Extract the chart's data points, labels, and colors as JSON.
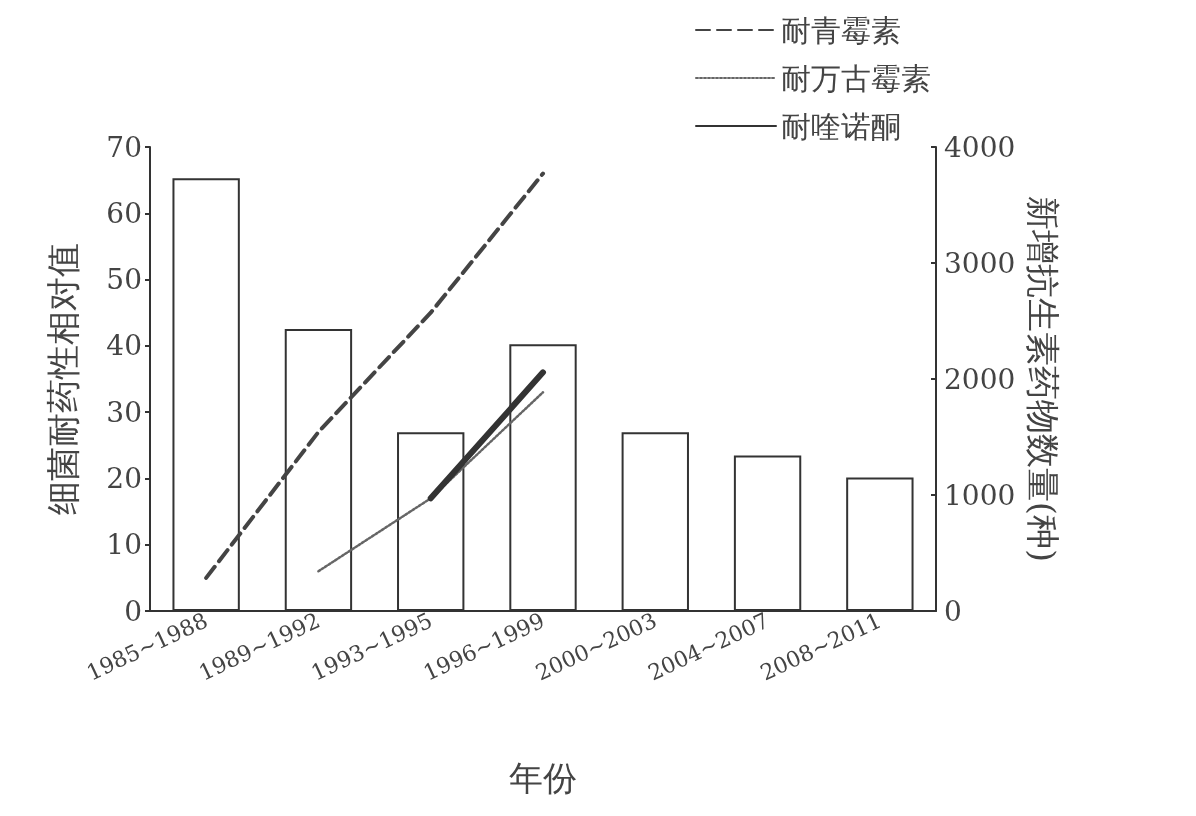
{
  "chart_data": {
    "type": "bar",
    "xlabel": "年份",
    "ylabel": "细菌耐药性相对值",
    "y2label": "新增抗生素药物数量(种)",
    "categories": [
      "1985~1988",
      "1989~1992",
      "1993~1995",
      "1996~1999",
      "2000~2003",
      "2004~2007",
      "2008~2011"
    ],
    "series": [
      {
        "axis": "y2",
        "color": "#ffffff",
        "values": [
          3730,
          2430,
          1540,
          2300,
          1540,
          1340,
          1150
        ]
      },
      {
        "type": "line",
        "name": "耐青霉素",
        "color": "#444444",
        "line_style": "dashed",
        "values": [
          5,
          27,
          45,
          66,
          null,
          null,
          null
        ]
      },
      {
        "type": "line",
        "name": "耐万古霉素",
        "color": "#666666",
        "line_style": "dotted",
        "values": [
          null,
          6,
          17,
          33,
          null,
          null,
          null
        ]
      },
      {
        "type": "line",
        "name": "耐喹诺酮",
        "color": "#333333",
        "line_style": "solid",
        "values": [
          null,
          null,
          17,
          36,
          null,
          null,
          null
        ]
      }
    ],
    "ylim": [
      0,
      70
    ],
    "yticks": [
      0,
      10,
      20,
      30,
      40,
      50,
      60,
      70
    ],
    "y2lim": [
      0,
      4000
    ],
    "y2ticks": [
      0,
      1000,
      2000,
      3000,
      4000
    ],
    "grid": false,
    "legend": "top right",
    "marker": "none"
  }
}
